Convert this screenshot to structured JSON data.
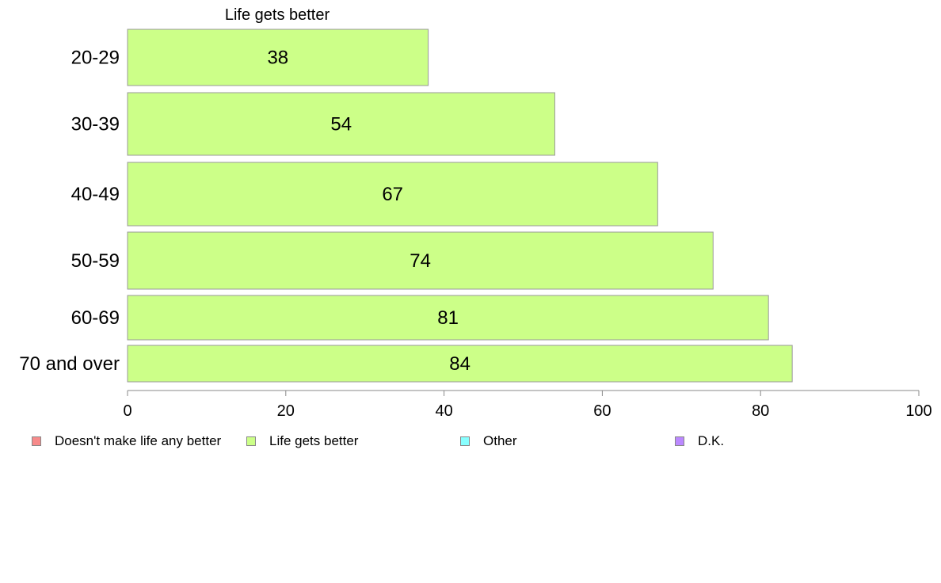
{
  "chart_data": {
    "type": "bar",
    "orientation": "horizontal",
    "stacked": true,
    "segment_title": "Life gets better",
    "categories": [
      "20-29",
      "30-39",
      "40-49",
      "50-59",
      "60-69",
      "70 and over"
    ],
    "series": [
      {
        "name": "Doesn't make life any better",
        "color": "#f78a8a",
        "values": [
          null,
          null,
          null,
          null,
          null,
          null
        ]
      },
      {
        "name": "Life gets better",
        "color": "#ccff88",
        "values": [
          38,
          54,
          67,
          74,
          81,
          84
        ]
      },
      {
        "name": "Other",
        "color": "#88ffff",
        "values": [
          null,
          null,
          null,
          null,
          null,
          null
        ]
      },
      {
        "name": "D.K.",
        "color": "#bb88ff",
        "values": [
          null,
          null,
          null,
          null,
          null,
          null
        ]
      }
    ],
    "data_labels": [
      "38",
      "54",
      "67",
      "74",
      "81",
      "84"
    ],
    "xlim": [
      0,
      100
    ],
    "xticks": [
      "0",
      "20",
      "40",
      "60",
      "80",
      "100"
    ],
    "grid": false,
    "legend_position": "bottom"
  }
}
